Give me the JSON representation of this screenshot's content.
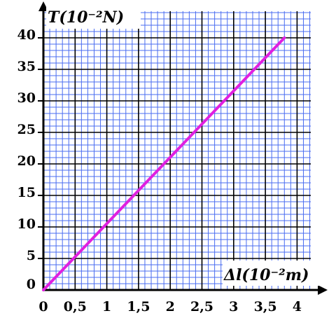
{
  "chart_data": {
    "type": "line",
    "xlabel": "Δl(10⁻²m)",
    "ylabel": "T(10⁻²N)",
    "xlim": [
      0,
      4.2
    ],
    "ylim": [
      0,
      43
    ],
    "x_ticks": [
      {
        "value": 0,
        "label": "0"
      },
      {
        "value": 0.5,
        "label": "0,5"
      },
      {
        "value": 1,
        "label": "1"
      },
      {
        "value": 1.5,
        "label": "1,5"
      },
      {
        "value": 2,
        "label": "2"
      },
      {
        "value": 2.5,
        "label": "2,5"
      },
      {
        "value": 3,
        "label": "3"
      },
      {
        "value": 3.5,
        "label": "3,5"
      },
      {
        "value": 4,
        "label": "4"
      }
    ],
    "y_ticks": [
      {
        "value": 0,
        "label": "0"
      },
      {
        "value": 5,
        "label": "5"
      },
      {
        "value": 10,
        "label": "10"
      },
      {
        "value": 15,
        "label": "15"
      },
      {
        "value": 20,
        "label": "20"
      },
      {
        "value": 25,
        "label": "25"
      },
      {
        "value": 30,
        "label": "30"
      },
      {
        "value": 35,
        "label": "35"
      },
      {
        "value": 40,
        "label": "40"
      }
    ],
    "series": [
      {
        "x": [
          0,
          3.8
        ],
        "y": [
          0,
          40
        ],
        "color": "#e020e0"
      }
    ],
    "grid": true,
    "colors": {
      "grid_minor": "#4a6cf0",
      "grid_major": "#000000",
      "background": "#ffffff",
      "line": "#e020e0"
    }
  }
}
